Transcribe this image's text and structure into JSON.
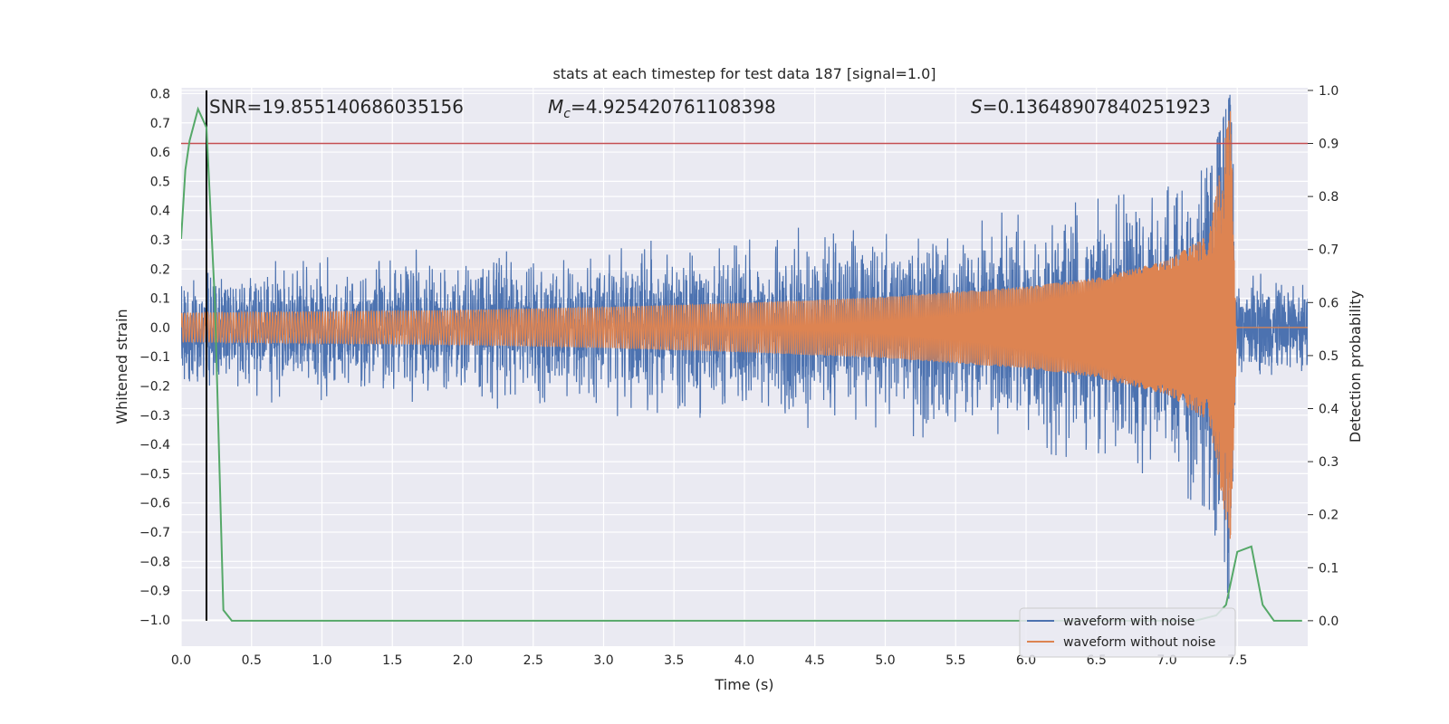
{
  "chart_data": {
    "type": "line",
    "title": "stats at each timestep for test data 187 [signal=1.0]",
    "xlabel": "Time (s)",
    "ylabel": "Whitened strain",
    "y2label": "Detection probability",
    "xlim": [
      0.0,
      8.0
    ],
    "ylim": [
      -1.09,
      0.82
    ],
    "y2lim": [
      -0.048,
      1.005
    ],
    "x_ticks": [
      0.0,
      0.5,
      1.0,
      1.5,
      2.0,
      2.5,
      3.0,
      3.5,
      4.0,
      4.5,
      5.0,
      5.5,
      6.0,
      6.5,
      7.0,
      7.5
    ],
    "x_tick_labels": [
      "0.0",
      "0.5",
      "1.0",
      "1.5",
      "2.0",
      "2.5",
      "3.0",
      "3.5",
      "4.0",
      "4.5",
      "5.0",
      "5.5",
      "6.0",
      "6.5",
      "7.0",
      "7.5"
    ],
    "y_ticks": [
      0.8,
      0.7,
      0.6,
      0.5,
      0.4,
      0.3,
      0.2,
      0.1,
      0.0,
      -0.1,
      -0.2,
      -0.3,
      -0.4,
      -0.5,
      -0.6,
      -0.7,
      -0.8,
      -0.9,
      -1.0
    ],
    "y_tick_labels": [
      "0.8",
      "0.7",
      "0.6",
      "0.5",
      "0.4",
      "0.3",
      "0.2",
      "0.1",
      "0.0",
      "−0.1",
      "−0.2",
      "−0.3",
      "−0.4",
      "−0.5",
      "−0.6",
      "−0.7",
      "−0.8",
      "−0.9",
      "−1.0"
    ],
    "y2_ticks": [
      1.0,
      0.9,
      0.8,
      0.7,
      0.6,
      0.5,
      0.4,
      0.3,
      0.2,
      0.1,
      0.0
    ],
    "y2_tick_labels": [
      "1.0",
      "0.9",
      "0.8",
      "0.7",
      "0.6",
      "0.5",
      "0.4",
      "0.3",
      "0.2",
      "0.1",
      "0.0"
    ],
    "grid": true,
    "annotations": {
      "snr": "SNR=19.855140686035156",
      "mc_symbol": "M",
      "mc_sub": "c",
      "mc_value": "=4.925420761108398",
      "s_symbol": "S",
      "s_value": "=0.13648907840251923"
    },
    "threshold": {
      "value": 0.9,
      "axis": "y2",
      "color": "#c44e52"
    },
    "marker_vline": {
      "x": 0.18,
      "color": "#000000"
    },
    "merger_time": 7.49,
    "legend": {
      "position": "lower-right",
      "entries": [
        "waveform with noise",
        "waveform without noise"
      ]
    },
    "colors": {
      "noise": "#4c72b0",
      "clean": "#dd8452",
      "probability": "#55a868",
      "background": "#eaeaf2",
      "grid": "#ffffff"
    },
    "series": [
      {
        "name": "waveform with noise",
        "kind": "noisy-envelope",
        "description_values": {
          "t": [
            0.0,
            1.0,
            2.0,
            3.0,
            4.0,
            5.0,
            6.0,
            6.5,
            7.0,
            7.3,
            7.45,
            7.5,
            8.0
          ],
          "upper": [
            0.25,
            0.26,
            0.27,
            0.3,
            0.33,
            0.36,
            0.4,
            0.44,
            0.48,
            0.55,
            0.8,
            0.22,
            0.22
          ],
          "lower": [
            -0.25,
            -0.26,
            -0.27,
            -0.3,
            -0.33,
            -0.36,
            -0.42,
            -0.46,
            -0.55,
            -0.62,
            -0.95,
            -0.22,
            -0.22
          ]
        }
      },
      {
        "name": "waveform without noise",
        "kind": "chirp",
        "description_values": {
          "t": [
            0.0,
            1.0,
            2.0,
            3.0,
            4.0,
            5.0,
            6.0,
            6.5,
            7.0,
            7.3,
            7.45,
            7.5,
            8.0
          ],
          "amplitude": [
            0.05,
            0.055,
            0.06,
            0.07,
            0.085,
            0.105,
            0.14,
            0.17,
            0.23,
            0.32,
            0.75,
            0.0,
            0.0
          ]
        }
      },
      {
        "name": "detection probability",
        "axis": "y2",
        "x": [
          0.0,
          0.03,
          0.06,
          0.12,
          0.18,
          0.24,
          0.3,
          0.36,
          0.42,
          6.0,
          7.2,
          7.35,
          7.42,
          7.5,
          7.6,
          7.68,
          7.76,
          7.82,
          7.96
        ],
        "values": [
          0.72,
          0.85,
          0.905,
          0.965,
          0.93,
          0.6,
          0.02,
          0.0,
          0.0,
          0.0,
          0.0,
          0.01,
          0.03,
          0.13,
          0.14,
          0.03,
          0.0,
          0.0,
          0.0
        ]
      }
    ]
  }
}
